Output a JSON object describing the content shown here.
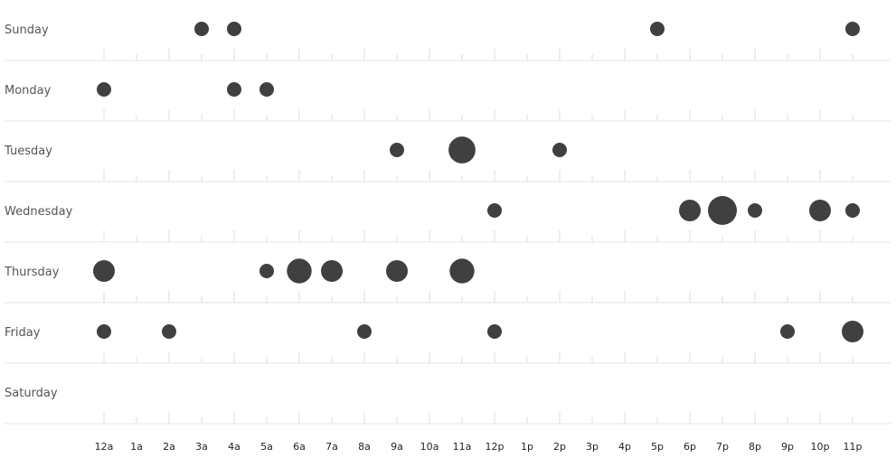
{
  "chart_data": {
    "type": "scatter",
    "days": [
      "Sunday",
      "Monday",
      "Tuesday",
      "Wednesday",
      "Thursday",
      "Friday",
      "Saturday"
    ],
    "hours": [
      "12a",
      "1a",
      "2a",
      "3a",
      "4a",
      "5a",
      "6a",
      "7a",
      "8a",
      "9a",
      "10a",
      "11a",
      "12p",
      "1p",
      "2p",
      "3p",
      "4p",
      "5p",
      "6p",
      "7p",
      "8p",
      "9p",
      "10p",
      "11p"
    ],
    "points": [
      {
        "day": "Sunday",
        "hour": 3,
        "value": 1
      },
      {
        "day": "Sunday",
        "hour": 4,
        "value": 1
      },
      {
        "day": "Sunday",
        "hour": 17,
        "value": 1
      },
      {
        "day": "Sunday",
        "hour": 23,
        "value": 1
      },
      {
        "day": "Monday",
        "hour": 0,
        "value": 1
      },
      {
        "day": "Monday",
        "hour": 4,
        "value": 1
      },
      {
        "day": "Monday",
        "hour": 5,
        "value": 1
      },
      {
        "day": "Tuesday",
        "hour": 9,
        "value": 1
      },
      {
        "day": "Tuesday",
        "hour": 11,
        "value": 4
      },
      {
        "day": "Tuesday",
        "hour": 14,
        "value": 1
      },
      {
        "day": "Wednesday",
        "hour": 12,
        "value": 1
      },
      {
        "day": "Wednesday",
        "hour": 18,
        "value": 2
      },
      {
        "day": "Wednesday",
        "hour": 19,
        "value": 5
      },
      {
        "day": "Wednesday",
        "hour": 20,
        "value": 1
      },
      {
        "day": "Wednesday",
        "hour": 22,
        "value": 2
      },
      {
        "day": "Wednesday",
        "hour": 23,
        "value": 1
      },
      {
        "day": "Thursday",
        "hour": 0,
        "value": 2
      },
      {
        "day": "Thursday",
        "hour": 5,
        "value": 1
      },
      {
        "day": "Thursday",
        "hour": 6,
        "value": 3
      },
      {
        "day": "Thursday",
        "hour": 7,
        "value": 2
      },
      {
        "day": "Thursday",
        "hour": 9,
        "value": 2
      },
      {
        "day": "Thursday",
        "hour": 11,
        "value": 3
      },
      {
        "day": "Friday",
        "hour": 0,
        "value": 1
      },
      {
        "day": "Friday",
        "hour": 2,
        "value": 1
      },
      {
        "day": "Friday",
        "hour": 8,
        "value": 1
      },
      {
        "day": "Friday",
        "hour": 12,
        "value": 1
      },
      {
        "day": "Friday",
        "hour": 21,
        "value": 1
      },
      {
        "day": "Friday",
        "hour": 23,
        "value": 2
      }
    ],
    "title": "",
    "xlabel": "",
    "ylabel": "",
    "grid": true,
    "colors": {
      "dot": "#404040",
      "separator": "#e6e6e6",
      "tick": "#dddddd"
    }
  }
}
